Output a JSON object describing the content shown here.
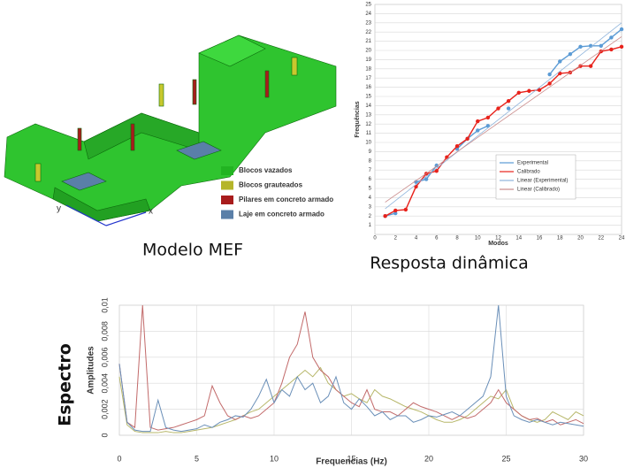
{
  "figure": {
    "model": {
      "caption": "Modelo MEF",
      "axes": [
        "x",
        "y"
      ],
      "legend": [
        {
          "label": "Blocos vazados",
          "color": "#22b422"
        },
        {
          "label": "Blocos grauteados",
          "color": "#b5b52a"
        },
        {
          "label": "Pilares em concreto armado",
          "color": "#a81c1c"
        },
        {
          "label": "Laje em concreto armado",
          "color": "#5a7fa8"
        }
      ]
    },
    "response_caption": "Resposta dinâmica",
    "spectrum_caption": "Espectro"
  },
  "chart_data": [
    {
      "type": "line",
      "xlabel": "Modos",
      "ylabel": "Frequências",
      "x": [
        1,
        2,
        3,
        4,
        5,
        6,
        7,
        8,
        9,
        10,
        11,
        12,
        13,
        14,
        15,
        16,
        17,
        18,
        19,
        20,
        21,
        22,
        23,
        24
      ],
      "series": [
        {
          "name": "Experimental",
          "color": "#5b9bd5",
          "marker": true,
          "values": [
            2.0,
            2.3,
            null,
            5.7,
            6.0,
            7.5,
            null,
            9.3,
            10.4,
            11.3,
            11.8,
            null,
            13.7,
            null,
            null,
            null,
            17.4,
            18.8,
            19.6,
            20.4,
            20.5,
            20.5,
            21.4,
            22.3
          ]
        },
        {
          "name": "Calibrado",
          "color": "#e8221b",
          "marker": true,
          "values": [
            2.0,
            2.6,
            2.7,
            5.2,
            6.6,
            6.9,
            8.4,
            9.6,
            10.4,
            12.3,
            12.7,
            13.7,
            14.5,
            15.4,
            15.6,
            15.7,
            16.4,
            17.5,
            17.6,
            18.3,
            18.3,
            19.9,
            20.1,
            20.4
          ]
        },
        {
          "name": "Linear (Experimental)",
          "color": "#8fb4dc",
          "x": [
            1,
            24
          ],
          "values": [
            2.8,
            23.0
          ]
        },
        {
          "name": "Linear (Calibrado)",
          "color": "#c98a8a",
          "x": [
            1,
            24
          ],
          "values": [
            3.5,
            21.5
          ]
        }
      ],
      "xlim": [
        0,
        24
      ],
      "xticks": [
        0,
        2,
        4,
        6,
        8,
        10,
        12,
        14,
        16,
        18,
        20,
        22,
        24
      ],
      "ylim": [
        0,
        25
      ],
      "yticks": [
        1,
        2,
        3,
        4,
        5,
        6,
        7,
        8,
        9,
        10,
        11,
        12,
        13,
        14,
        15,
        16,
        17,
        18,
        19,
        20,
        21,
        22,
        23,
        24,
        25
      ],
      "grid": "y",
      "legend": "lower right"
    },
    {
      "type": "line",
      "xlabel": "Frequencias (Hz)",
      "ylabel": "Amplitudes",
      "x": [
        0,
        0.5,
        1,
        1.5,
        2,
        2.5,
        3,
        3.5,
        4,
        4.5,
        5,
        5.5,
        6,
        6.5,
        7,
        7.5,
        8,
        8.5,
        9,
        9.5,
        10,
        10.5,
        11,
        11.5,
        12,
        12.5,
        13,
        13.5,
        14,
        14.5,
        15,
        15.5,
        16,
        16.5,
        17,
        17.5,
        18,
        18.5,
        19,
        19.5,
        20,
        20.5,
        21,
        21.5,
        22,
        22.5,
        23,
        23.5,
        24,
        24.5,
        25,
        25.5,
        26,
        26.5,
        27,
        27.5,
        28,
        28.5,
        29,
        29.5,
        30
      ],
      "series": [
        {
          "color": "#b7b76a",
          "values": [
            0.0045,
            0.0008,
            0.0003,
            0.0002,
            0.0002,
            0.0002,
            0.0003,
            0.0002,
            0.0002,
            0.0003,
            0.0004,
            0.0005,
            0.0006,
            0.0008,
            0.001,
            0.0012,
            0.0015,
            0.0018,
            0.002,
            0.0025,
            0.003,
            0.0035,
            0.004,
            0.0045,
            0.005,
            0.0045,
            0.0052,
            0.004,
            0.0035,
            0.003,
            0.0032,
            0.0028,
            0.0025,
            0.0035,
            0.003,
            0.0028,
            0.0025,
            0.0022,
            0.002,
            0.0018,
            0.0015,
            0.0012,
            0.001,
            0.001,
            0.0012,
            0.0015,
            0.002,
            0.0025,
            0.003,
            0.0028,
            0.0035,
            0.002,
            0.0015,
            0.0012,
            0.001,
            0.0012,
            0.0018,
            0.0015,
            0.0012,
            0.0018,
            0.0015
          ]
        },
        {
          "color": "#c26a6a",
          "values": [
            0.0055,
            0.001,
            0.0006,
            0.01,
            0.0006,
            0.0004,
            0.0005,
            0.0006,
            0.0008,
            0.001,
            0.0012,
            0.0015,
            0.0038,
            0.0025,
            0.0015,
            0.0012,
            0.0015,
            0.0013,
            0.0015,
            0.002,
            0.0025,
            0.004,
            0.006,
            0.007,
            0.0095,
            0.006,
            0.005,
            0.0045,
            0.0035,
            0.003,
            0.0025,
            0.0022,
            0.0035,
            0.002,
            0.0018,
            0.0018,
            0.0015,
            0.002,
            0.0025,
            0.0022,
            0.002,
            0.0018,
            0.0015,
            0.0012,
            0.0015,
            0.0013,
            0.0015,
            0.002,
            0.0025,
            0.0035,
            0.0025,
            0.002,
            0.0015,
            0.0012,
            0.0013,
            0.001,
            0.0012,
            0.0008,
            0.001,
            0.0012,
            0.0009
          ]
        },
        {
          "color": "#6a8fb8",
          "values": [
            0.0055,
            0.001,
            0.0004,
            0.0003,
            0.0003,
            0.0027,
            0.0006,
            0.0004,
            0.0003,
            0.0004,
            0.0005,
            0.0008,
            0.0006,
            0.001,
            0.0012,
            0.0015,
            0.0014,
            0.002,
            0.003,
            0.0043,
            0.0025,
            0.0035,
            0.003,
            0.0045,
            0.0035,
            0.004,
            0.0025,
            0.003,
            0.0045,
            0.0025,
            0.002,
            0.0028,
            0.0022,
            0.0015,
            0.0018,
            0.0012,
            0.0015,
            0.0015,
            0.001,
            0.0012,
            0.0015,
            0.0014,
            0.0016,
            0.0018,
            0.0015,
            0.002,
            0.0025,
            0.003,
            0.0045,
            0.01,
            0.003,
            0.0015,
            0.0012,
            0.001,
            0.0012,
            0.001,
            0.0008,
            0.001,
            0.0009,
            0.0008,
            0.0007
          ]
        }
      ],
      "xlim": [
        0,
        30
      ],
      "xticks": [
        0,
        5,
        10,
        15,
        20,
        25,
        30
      ],
      "ylim": [
        0,
        0.01
      ],
      "yticks": [
        0,
        {
          "value": 0.002,
          "label": "0,002"
        },
        {
          "value": 0.004,
          "label": "0,004"
        },
        {
          "value": 0.006,
          "label": "0,006"
        },
        {
          "value": 0.008,
          "label": "0,008"
        },
        {
          "value": 0.01,
          "label": "0,01"
        }
      ],
      "grid": "both"
    }
  ]
}
